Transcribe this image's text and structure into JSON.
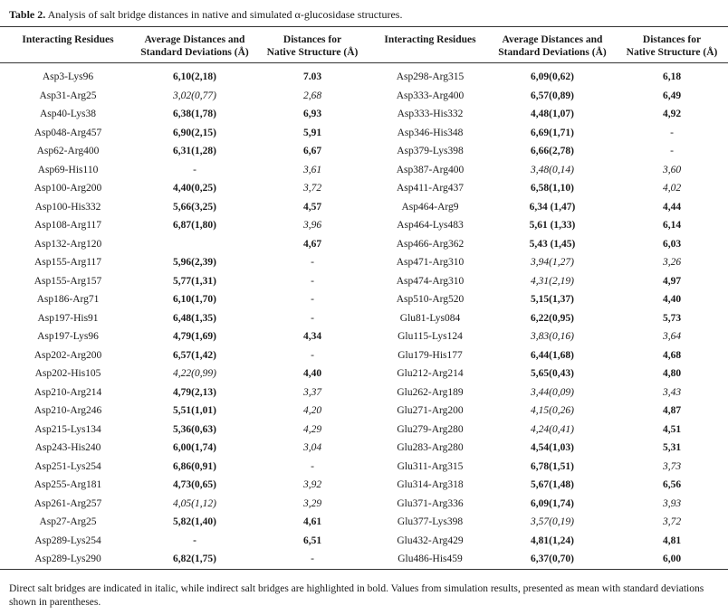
{
  "title": {
    "label": "Table 2.",
    "text": "Analysis of salt bridge distances in native and simulated α-glucosidase structures."
  },
  "table": {
    "headers": [
      "Interacting Residues",
      "Average Distances and\nStandard Deviations (Å)",
      "Distances for\nNative Structure (Å)",
      "Interacting Residues",
      "Average Distances and\nStandard Deviations (Å)",
      "Distances for\nNative Structure (Å)"
    ],
    "rows": [
      [
        "Asp3-Lys96",
        "6,10(2,18)",
        "7.03",
        "Asp298-Arg315",
        "6,09(0,62)",
        "6,18"
      ],
      [
        "Asp31-Arg25",
        "3,02(0,77)",
        "2,68",
        "Asp333-Arg400",
        "6,57(0,89)",
        "6,49"
      ],
      [
        "Asp40-Lys38",
        "6,38(1,78)",
        "6,93",
        "Asp333-His332",
        "4,48(1,07)",
        "4,92"
      ],
      [
        "Asp048-Arg457",
        "6,90(2,15)",
        "5,91",
        "Asp346-His348",
        "6,69(1,71)",
        "-"
      ],
      [
        "Asp62-Arg400",
        "6,31(1,28)",
        "6,67",
        "Asp379-Lys398",
        "6,66(2,78)",
        "-"
      ],
      [
        "Asp69-His110",
        "-",
        "3,61",
        "Asp387-Arg400",
        "3,48(0,14)",
        "3,60"
      ],
      [
        "Asp100-Arg200",
        "4,40(0,25)",
        "3,72",
        "Asp411-Arg437",
        "6,58(1,10)",
        "4,02"
      ],
      [
        "Asp100-His332",
        "5,66(3,25)",
        "4,57",
        "Asp464-Arg9",
        "6,34 (1,47)",
        "4,44"
      ],
      [
        "Asp108-Arg117",
        "6,87(1,80)",
        "3,96",
        "Asp464-Lys483",
        "5,61 (1,33)",
        "6,14"
      ],
      [
        "Asp132-Arg120",
        null,
        "4,67",
        "Asp466-Arg362",
        "5,43 (1,45)",
        "6,03"
      ],
      [
        "Asp155-Arg117",
        "5,96(2,39)",
        "-",
        "Asp471-Arg310",
        "3,94(1,27)",
        "3,26"
      ],
      [
        "Asp155-Arg157",
        "5,77(1,31)",
        "-",
        "Asp474-Arg310",
        "4,31(2,19)",
        "4,97"
      ],
      [
        "Asp186-Arg71",
        "6,10(1,70)",
        "-",
        "Asp510-Arg520",
        "5,15(1,37)",
        "4,40"
      ],
      [
        "Asp197-His91",
        "6,48(1,35)",
        "-",
        "Glu81-Lys084",
        "6,22(0,95)",
        "5,73"
      ],
      [
        "Asp197-Lys96",
        "4,79(1,69)",
        "4,34",
        "Glu115-Lys124",
        "3,83(0,16)",
        "3,64"
      ],
      [
        "Asp202-Arg200",
        "6,57(1,42)",
        "-",
        "Glu179-His177",
        "6,44(1,68)",
        "4,68"
      ],
      [
        "Asp202-His105",
        "4,22(0,99)",
        "4,40",
        "Glu212-Arg214",
        "5,65(0,43)",
        "4,80"
      ],
      [
        "Asp210-Arg214",
        "4,79(2,13)",
        "3,37",
        "Glu262-Arg189",
        "3,44(0,09)",
        "3,43"
      ],
      [
        "Asp210-Arg246",
        "5,51(1,01)",
        "4,20",
        "Glu271-Arg200",
        "4,15(0,26)",
        "4,87"
      ],
      [
        "Asp215-Lys134",
        "5,36(0,63)",
        "4,29",
        "Glu279-Arg280",
        "4,24(0,41)",
        "4,51"
      ],
      [
        "Asp243-His240",
        "6,00(1,74)",
        "3,04",
        "Glu283-Arg280",
        "4,54(1,03)",
        "5,31"
      ],
      [
        "Asp251-Lys254",
        "6,86(0,91)",
        "-",
        "Glu311-Arg315",
        "6,78(1,51)",
        "3,73"
      ],
      [
        "Asp255-Arg181",
        "4,73(0,65)",
        "3,92",
        "Glu314-Arg318",
        "5,67(1,48)",
        "6,56"
      ],
      [
        "Asp261-Arg257",
        "4,05(1,12)",
        "3,29",
        "Glu371-Arg336",
        "6,09(1,74)",
        "3,93"
      ],
      [
        "Asp27-Arg25",
        "5,82(1,40)",
        "4,61",
        "Glu377-Lys398",
        "3,57(0,19)",
        "3,72"
      ],
      [
        "Asp289-Lys254",
        "-",
        "6,51",
        "Glu432-Arg429",
        "4,81(1,24)",
        "4,81"
      ],
      [
        "Asp289-Lys290",
        "6,82(1,75)",
        "-",
        "Glu486-His459",
        "6,37(0,70)",
        "6,00"
      ]
    ],
    "emphasis": [
      "nbbnbb",
      "niinbb",
      "nbbnbb",
      "nbbnbn",
      "nbbnbn",
      "nninii",
      "nbinbi",
      "nbbnbb",
      "nbinbb",
      "nnbnbb",
      "nbnnii",
      "nbnnib",
      "nbnnbb",
      "nbnnbb",
      "nbbnii",
      "nbnnbb",
      "nibnbb",
      "nbinii",
      "nbinib",
      "nbinib",
      "nbinbb",
      "nbnnbi",
      "nbinbb",
      "niinbi",
      "nbbnii",
      "nbbnbb",
      "nbnnbb"
    ]
  },
  "footnote": "Direct salt bridges are indicated in italic, while indirect salt bridges are highlighted in bold. Values from simulation results, presented as mean with standard deviations shown in parentheses."
}
